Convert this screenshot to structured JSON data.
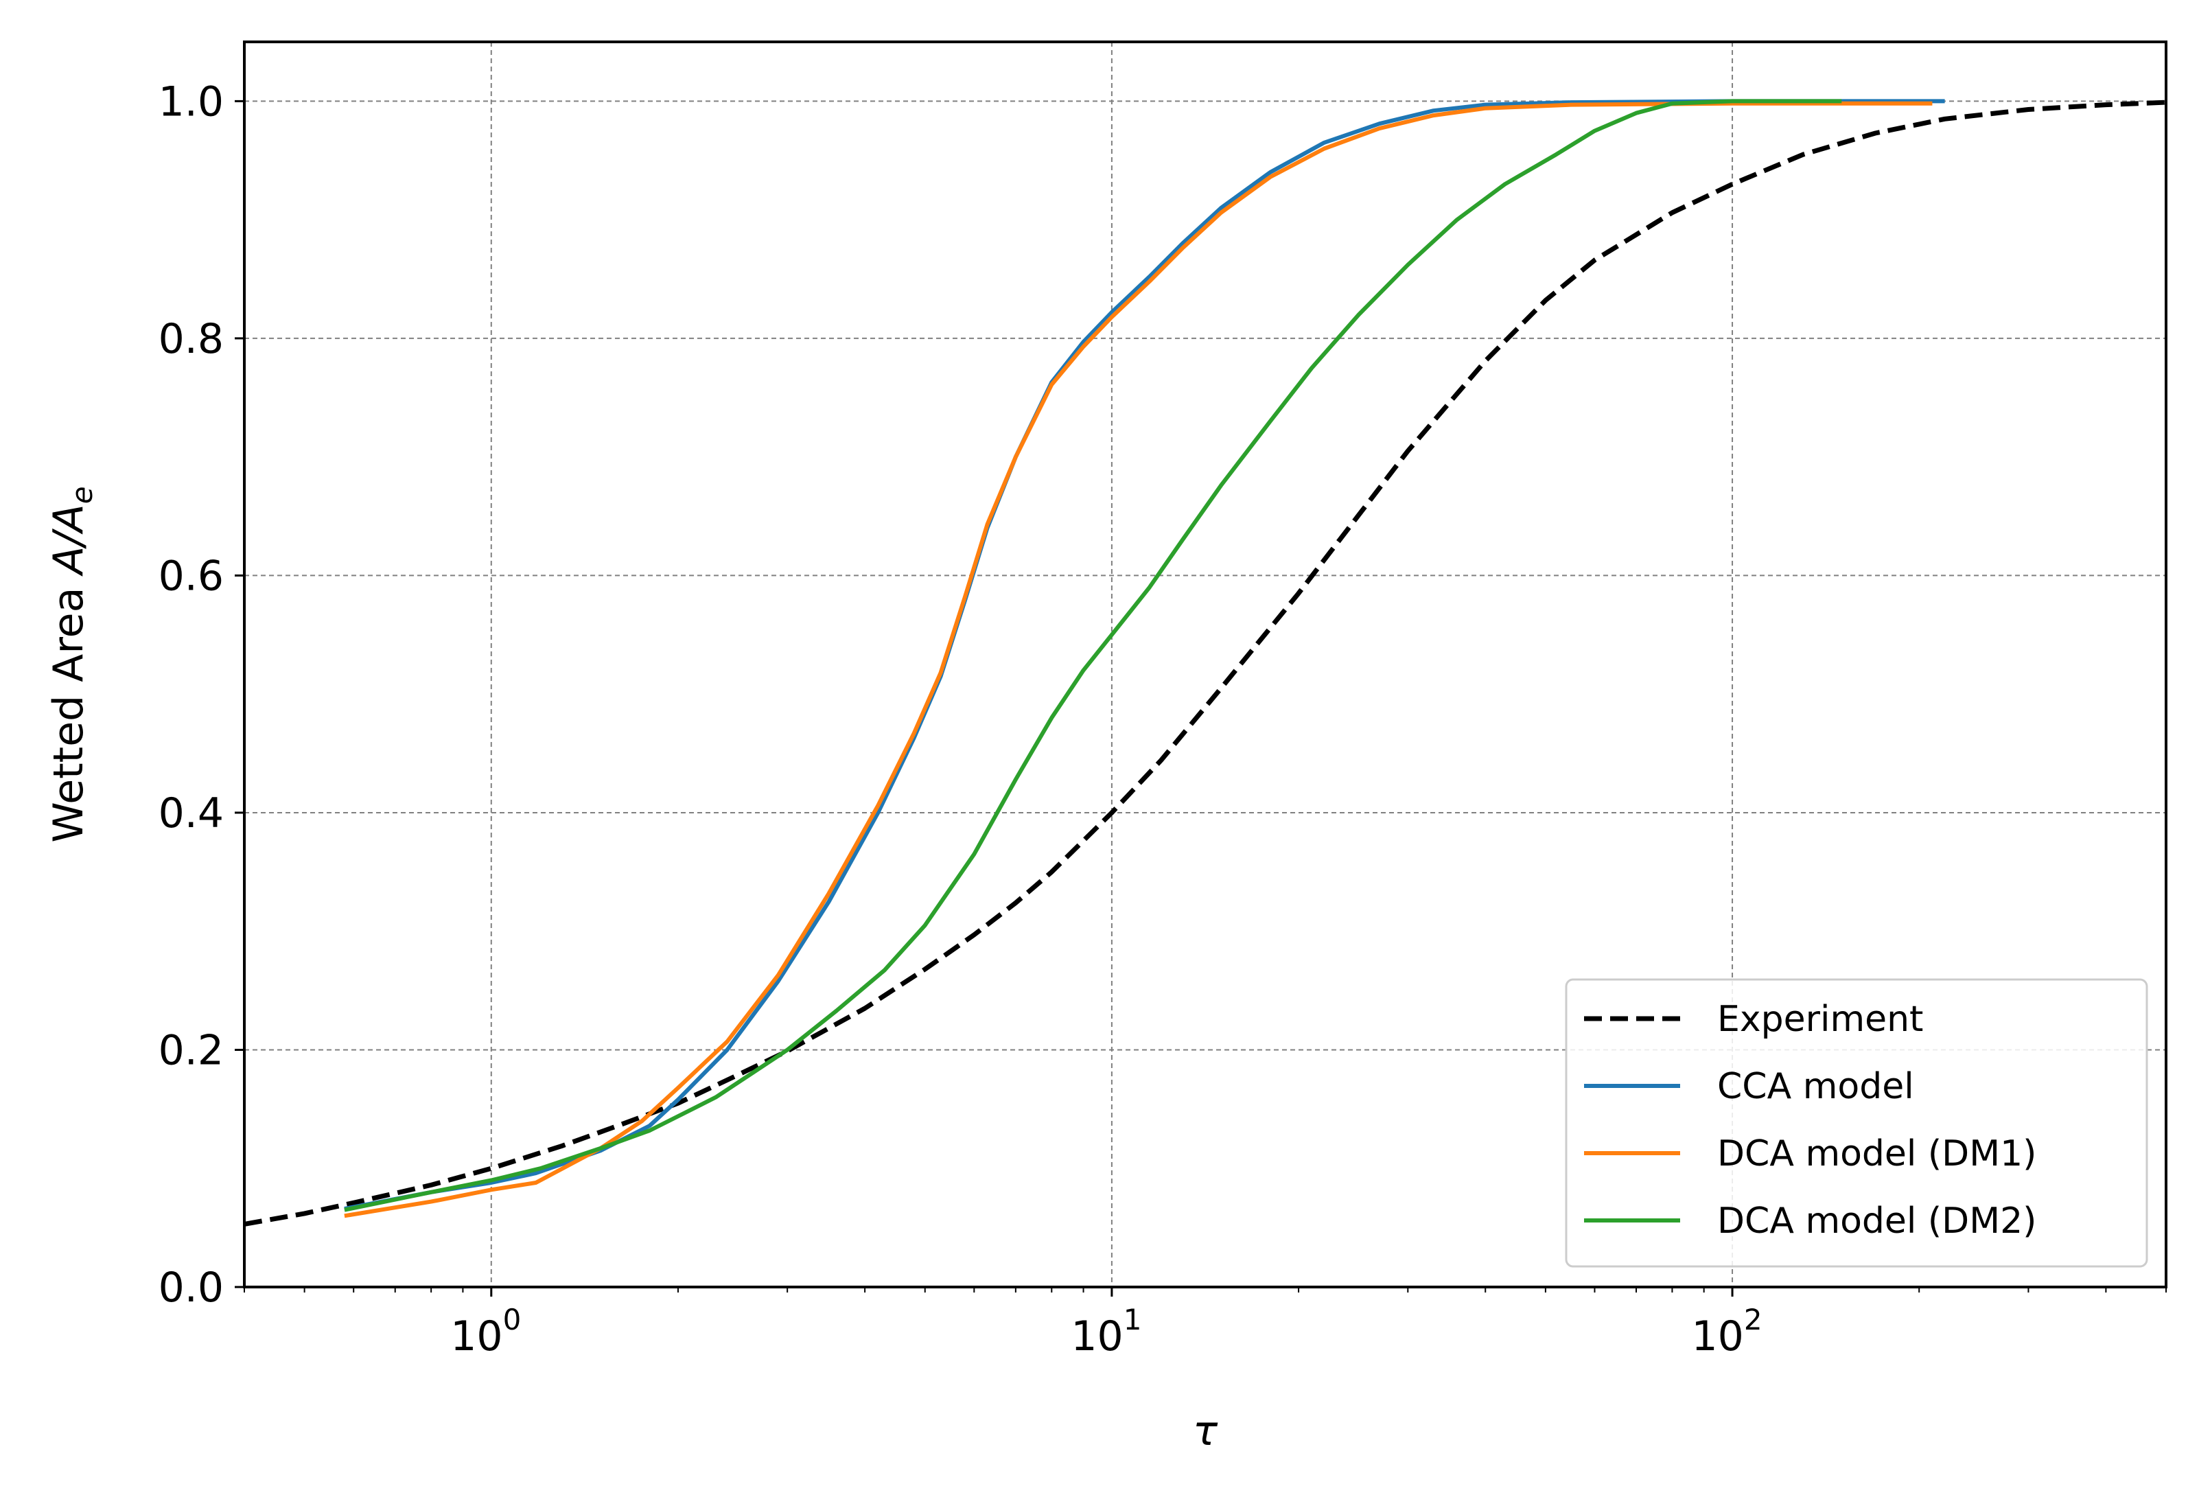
{
  "chart_data": {
    "type": "line",
    "xscale": "log",
    "xlabel": "τ",
    "ylabel": "Wetted Area A/Ae",
    "ylabel_parts": {
      "prefix": "Wetted Area ",
      "var": "A/A",
      "sub": "e"
    },
    "xlim": [
      0.4,
      500
    ],
    "ylim": [
      0,
      1.05
    ],
    "grid": true,
    "legend_position": "lower-right",
    "x_tick_labels": [
      {
        "base": "10",
        "exp": "0",
        "value": 1
      },
      {
        "base": "10",
        "exp": "1",
        "value": 10
      },
      {
        "base": "10",
        "exp": "2",
        "value": 100
      }
    ],
    "y_tick_labels": [
      "0.0",
      "0.2",
      "0.4",
      "0.6",
      "0.8",
      "1.0"
    ],
    "y_tick_values": [
      0,
      0.2,
      0.4,
      0.6,
      0.8,
      1.0
    ],
    "series": [
      {
        "name": "Experiment",
        "color": "#000000",
        "style": "dashed",
        "points": [
          [
            0.4,
            0.053
          ],
          [
            0.5,
            0.062
          ],
          [
            0.6,
            0.071
          ],
          [
            0.8,
            0.086
          ],
          [
            1.0,
            0.1
          ],
          [
            1.3,
            0.119
          ],
          [
            1.6,
            0.136
          ],
          [
            2.0,
            0.155
          ],
          [
            2.5,
            0.179
          ],
          [
            3.0,
            0.199
          ],
          [
            4.0,
            0.235
          ],
          [
            5.0,
            0.268
          ],
          [
            6.0,
            0.297
          ],
          [
            7.0,
            0.324
          ],
          [
            8.0,
            0.35
          ],
          [
            10.0,
            0.4
          ],
          [
            12.0,
            0.444
          ],
          [
            15.0,
            0.505
          ],
          [
            20.0,
            0.585
          ],
          [
            25.0,
            0.651
          ],
          [
            30.0,
            0.705
          ],
          [
            40.0,
            0.781
          ],
          [
            50.0,
            0.832
          ],
          [
            60.0,
            0.866
          ],
          [
            80.0,
            0.906
          ],
          [
            100.0,
            0.93
          ],
          [
            130.0,
            0.955
          ],
          [
            170.0,
            0.973
          ],
          [
            220.0,
            0.985
          ],
          [
            300.0,
            0.993
          ],
          [
            400.0,
            0.997
          ],
          [
            500.0,
            0.999
          ]
        ]
      },
      {
        "name": "CCA model",
        "color": "#1f77b4",
        "style": "solid",
        "points": [
          [
            0.58,
            0.066
          ],
          [
            0.8,
            0.08
          ],
          [
            1.0,
            0.088
          ],
          [
            1.18,
            0.096
          ],
          [
            1.5,
            0.115
          ],
          [
            1.8,
            0.136
          ],
          [
            2.0,
            0.158
          ],
          [
            2.4,
            0.2
          ],
          [
            2.9,
            0.258
          ],
          [
            3.5,
            0.325
          ],
          [
            4.2,
            0.4
          ],
          [
            4.8,
            0.463
          ],
          [
            5.3,
            0.515
          ],
          [
            5.8,
            0.579
          ],
          [
            6.3,
            0.64
          ],
          [
            7.0,
            0.7
          ],
          [
            8.0,
            0.763
          ],
          [
            9.0,
            0.797
          ],
          [
            10.0,
            0.822
          ],
          [
            11.5,
            0.852
          ],
          [
            13.0,
            0.88
          ],
          [
            15.0,
            0.91
          ],
          [
            18.0,
            0.94
          ],
          [
            22.0,
            0.965
          ],
          [
            27.0,
            0.981
          ],
          [
            33.0,
            0.992
          ],
          [
            40.0,
            0.997
          ],
          [
            55.0,
            0.999
          ],
          [
            100.0,
            1.0
          ],
          [
            220.0,
            1.0
          ]
        ]
      },
      {
        "name": "DCA model (DM1)",
        "color": "#ff7f0e",
        "style": "solid",
        "points": [
          [
            0.58,
            0.06
          ],
          [
            0.8,
            0.072
          ],
          [
            1.0,
            0.082
          ],
          [
            1.18,
            0.088
          ],
          [
            1.5,
            0.117
          ],
          [
            1.75,
            0.14
          ],
          [
            2.0,
            0.168
          ],
          [
            2.4,
            0.207
          ],
          [
            2.9,
            0.263
          ],
          [
            3.5,
            0.332
          ],
          [
            4.2,
            0.406
          ],
          [
            4.8,
            0.467
          ],
          [
            5.3,
            0.518
          ],
          [
            5.8,
            0.582
          ],
          [
            6.3,
            0.643
          ],
          [
            7.0,
            0.7
          ],
          [
            8.0,
            0.761
          ],
          [
            9.0,
            0.793
          ],
          [
            10.0,
            0.818
          ],
          [
            11.5,
            0.848
          ],
          [
            13.0,
            0.876
          ],
          [
            15.0,
            0.906
          ],
          [
            18.0,
            0.936
          ],
          [
            22.0,
            0.96
          ],
          [
            27.0,
            0.977
          ],
          [
            33.0,
            0.988
          ],
          [
            40.0,
            0.994
          ],
          [
            55.0,
            0.997
          ],
          [
            100.0,
            0.998
          ],
          [
            210.0,
            0.998
          ]
        ]
      },
      {
        "name": "DCA model (DM2)",
        "color": "#2ca02c",
        "style": "solid",
        "points": [
          [
            0.58,
            0.065
          ],
          [
            0.8,
            0.08
          ],
          [
            1.0,
            0.09
          ],
          [
            1.2,
            0.1
          ],
          [
            1.5,
            0.117
          ],
          [
            1.8,
            0.132
          ],
          [
            2.3,
            0.16
          ],
          [
            3.0,
            0.2
          ],
          [
            3.6,
            0.233
          ],
          [
            4.3,
            0.267
          ],
          [
            5.0,
            0.305
          ],
          [
            6.0,
            0.365
          ],
          [
            7.0,
            0.428
          ],
          [
            8.0,
            0.48
          ],
          [
            9.0,
            0.52
          ],
          [
            10.0,
            0.55
          ],
          [
            11.5,
            0.59
          ],
          [
            13.0,
            0.63
          ],
          [
            15.0,
            0.676
          ],
          [
            18.0,
            0.73
          ],
          [
            21.0,
            0.775
          ],
          [
            25.0,
            0.82
          ],
          [
            30.0,
            0.862
          ],
          [
            36.0,
            0.9
          ],
          [
            43.0,
            0.93
          ],
          [
            52.0,
            0.955
          ],
          [
            60.0,
            0.975
          ],
          [
            70.0,
            0.99
          ],
          [
            80.0,
            0.998
          ],
          [
            100.0,
            1.0
          ],
          [
            150.0,
            1.0
          ]
        ]
      }
    ]
  }
}
